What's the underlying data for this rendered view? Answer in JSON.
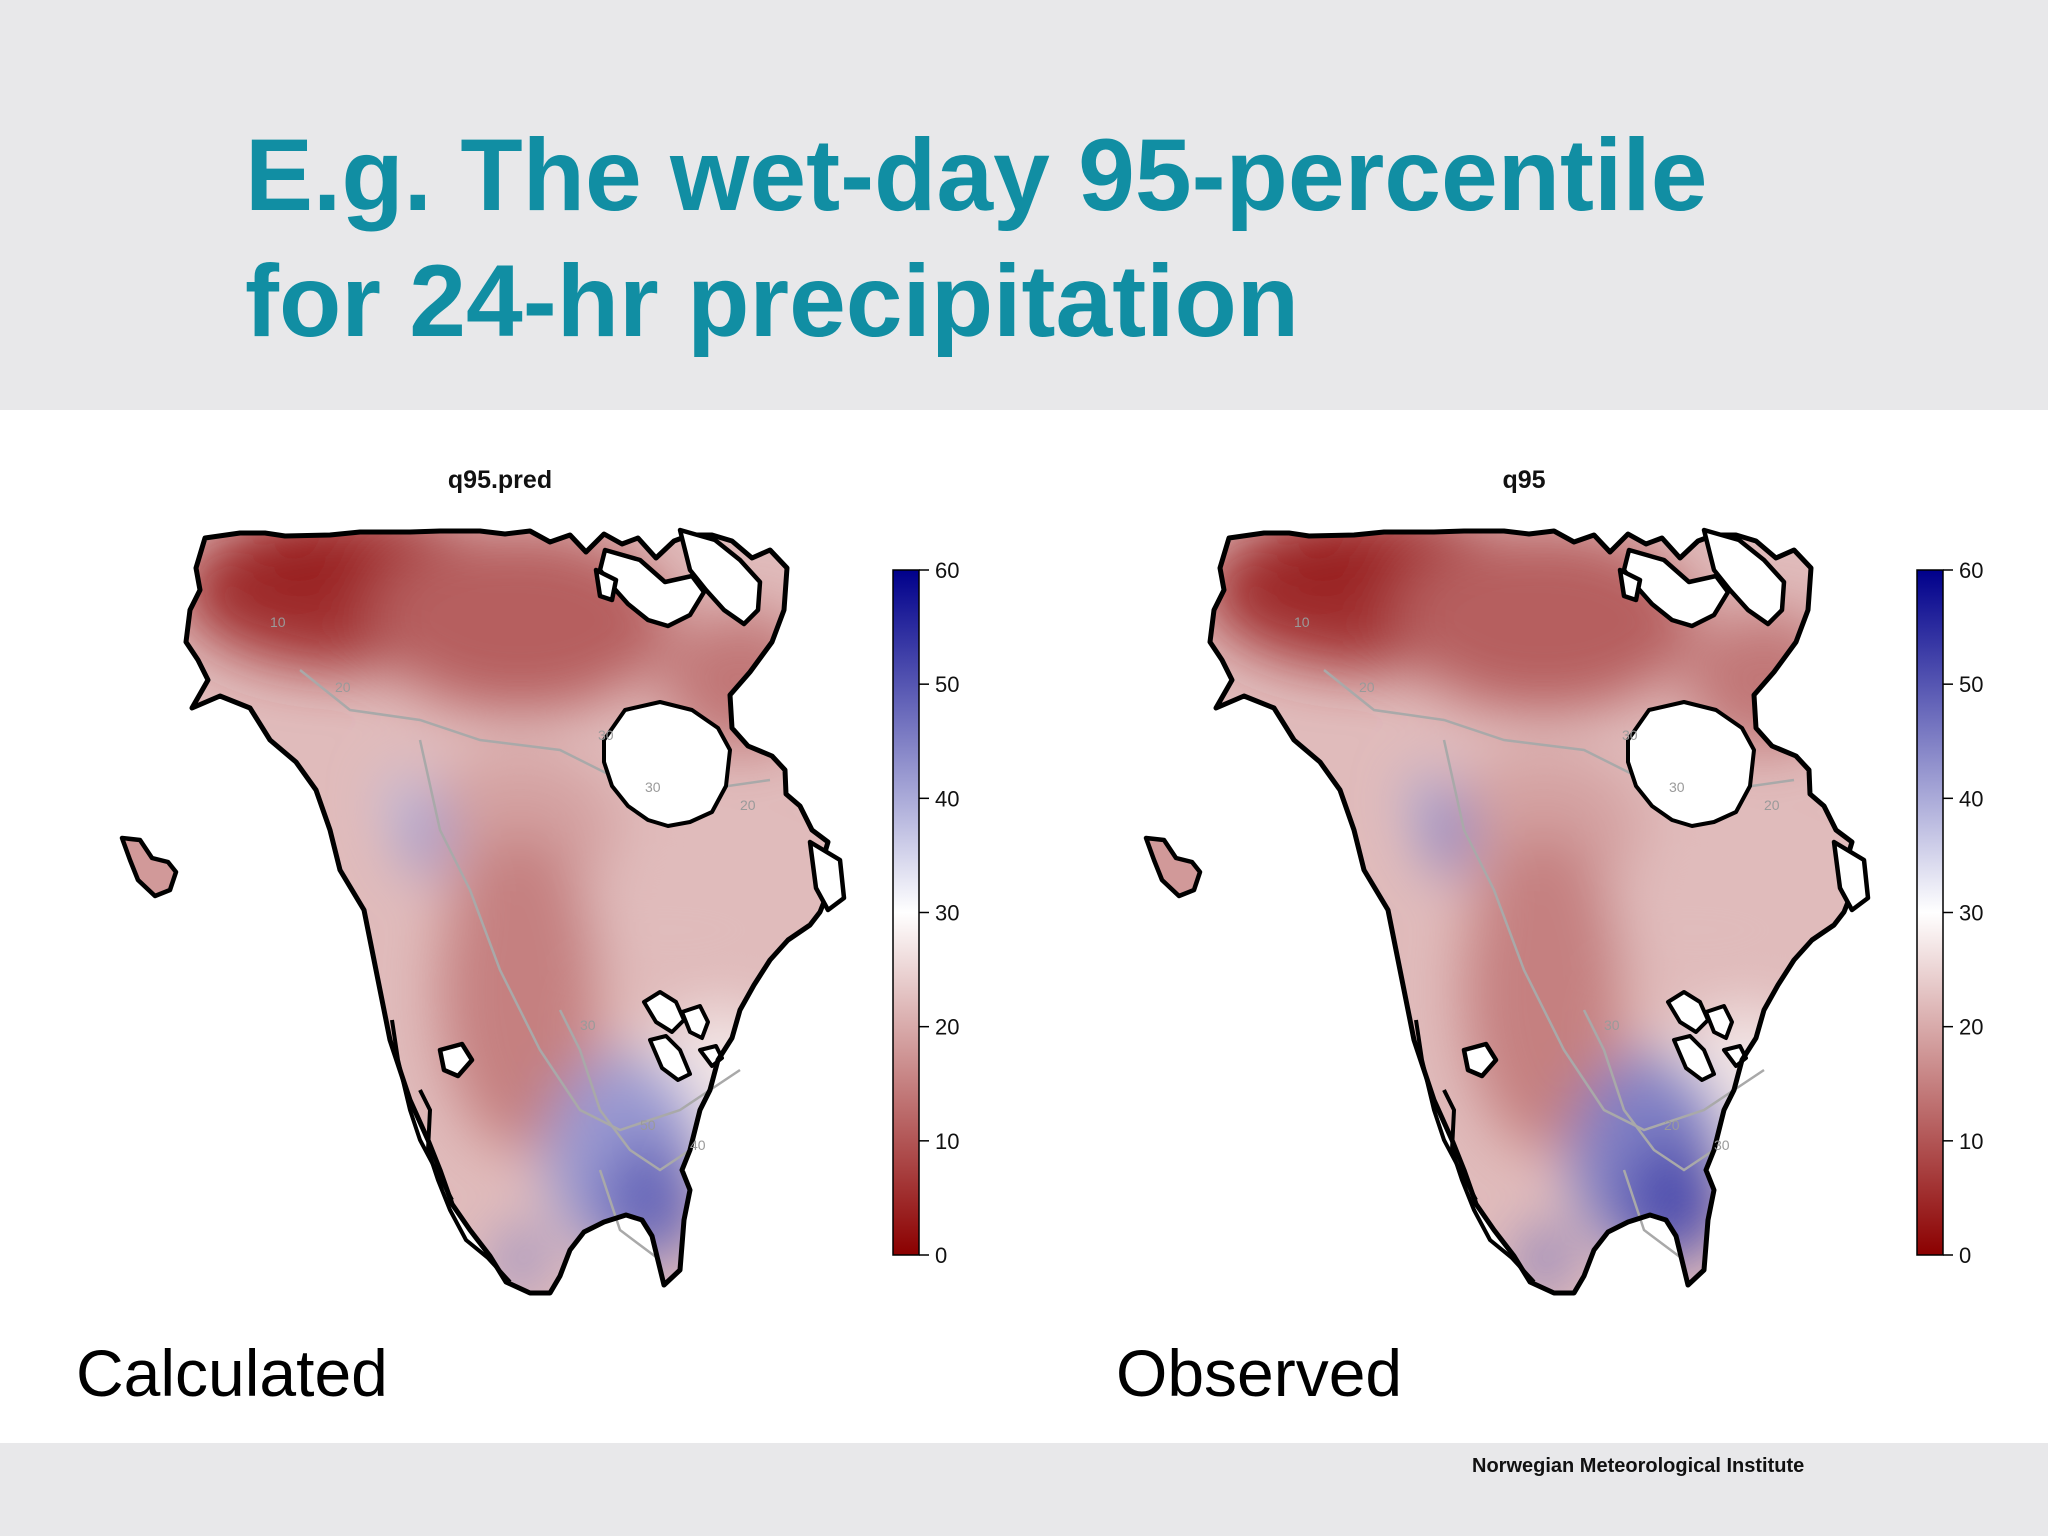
{
  "slide": {
    "title_line1": "E.g. The wet-day 95-percentile",
    "title_line2": "for 24-hr precipitation",
    "footer": "Norwegian Meteorological Institute"
  },
  "colors": {
    "title": "#118ea3",
    "low": "#8b0000",
    "mid": "#ffffff",
    "high": "#00008b",
    "band": "#e8e8ea"
  },
  "panels": [
    {
      "map_title": "q95.pred",
      "caption": "Calculated",
      "contour_labels": [
        "10",
        "20",
        "30",
        "30",
        "20",
        "50",
        "40",
        "30"
      ]
    },
    {
      "map_title": "q95",
      "caption": "Observed",
      "contour_labels": [
        "10",
        "20",
        "30",
        "30",
        "20",
        "20",
        "30",
        "30"
      ]
    }
  ],
  "colorbar": {
    "min": 0,
    "max": 60,
    "ticks": [
      "0",
      "10",
      "20",
      "30",
      "40",
      "50",
      "60"
    ]
  }
}
